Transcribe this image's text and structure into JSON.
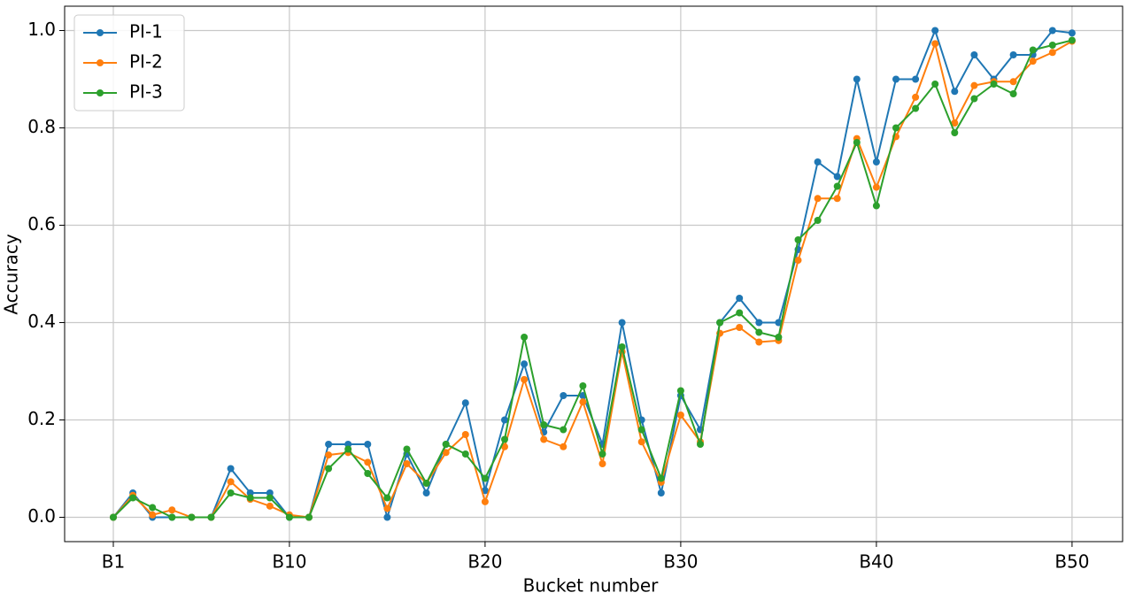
{
  "chart_data": {
    "type": "line",
    "x_label": "Bucket number",
    "y_label": "Accuracy",
    "categories": [
      "B1",
      null,
      null,
      null,
      null,
      null,
      null,
      null,
      null,
      "B10",
      null,
      null,
      null,
      null,
      null,
      null,
      null,
      null,
      null,
      "B20",
      null,
      null,
      null,
      null,
      null,
      null,
      null,
      null,
      null,
      "B30",
      null,
      null,
      null,
      null,
      null,
      null,
      null,
      null,
      null,
      "B40",
      null,
      null,
      null,
      null,
      null,
      null,
      null,
      null,
      null,
      "B50"
    ],
    "series": [
      {
        "name": "PI-1",
        "color": "#1f77b4",
        "values": [
          0,
          0.05,
          0,
          0,
          0,
          0,
          0.1,
          0.05,
          0.05,
          0,
          0,
          0.15,
          0.15,
          0.15,
          0,
          0.13,
          0.05,
          0.15,
          0.235,
          0.055,
          0.2,
          0.315,
          0.175,
          0.25,
          0.25,
          0.15,
          0.4,
          0.2,
          0.05,
          0.25,
          0.18,
          0.4,
          0.45,
          0.4,
          0.4,
          0.55,
          0.73,
          0.7,
          0.9,
          0.73,
          0.9,
          0.9,
          1.0,
          0.875,
          0.95,
          0.9,
          0.95,
          0.95,
          1.0,
          0.995
        ]
      },
      {
        "name": "PI-2",
        "color": "#ff7f0e",
        "values": [
          0,
          0.045,
          0.005,
          0.015,
          0,
          0,
          0.073,
          0.037,
          0.023,
          0.005,
          0,
          0.128,
          0.133,
          0.113,
          0.018,
          0.11,
          0.07,
          0.133,
          0.17,
          0.032,
          0.145,
          0.283,
          0.16,
          0.145,
          0.237,
          0.11,
          0.34,
          0.155,
          0.072,
          0.21,
          0.155,
          0.378,
          0.39,
          0.36,
          0.363,
          0.528,
          0.655,
          0.655,
          0.778,
          0.678,
          0.782,
          0.863,
          0.973,
          0.81,
          0.887,
          0.895,
          0.895,
          0.937,
          0.955,
          0.978
        ]
      },
      {
        "name": "PI-3",
        "color": "#2ca02c",
        "values": [
          0,
          0.04,
          0.02,
          0,
          0,
          0,
          0.05,
          0.04,
          0.04,
          0,
          0,
          0.1,
          0.14,
          0.09,
          0.04,
          0.14,
          0.07,
          0.15,
          0.13,
          0.08,
          0.16,
          0.37,
          0.19,
          0.18,
          0.27,
          0.13,
          0.35,
          0.18,
          0.08,
          0.26,
          0.15,
          0.4,
          0.42,
          0.38,
          0.37,
          0.57,
          0.61,
          0.68,
          0.77,
          0.64,
          0.8,
          0.84,
          0.89,
          0.79,
          0.86,
          0.89,
          0.87,
          0.96,
          0.97,
          0.98
        ]
      }
    ],
    "ylim": [
      -0.05,
      1.05
    ],
    "yticks": [
      {
        "value": 0,
        "label": "0.0"
      },
      0.2,
      0.4,
      0.6,
      0.8,
      {
        "value": 1,
        "label": "1.0"
      }
    ],
    "grid": true,
    "legend": "upper-left"
  }
}
